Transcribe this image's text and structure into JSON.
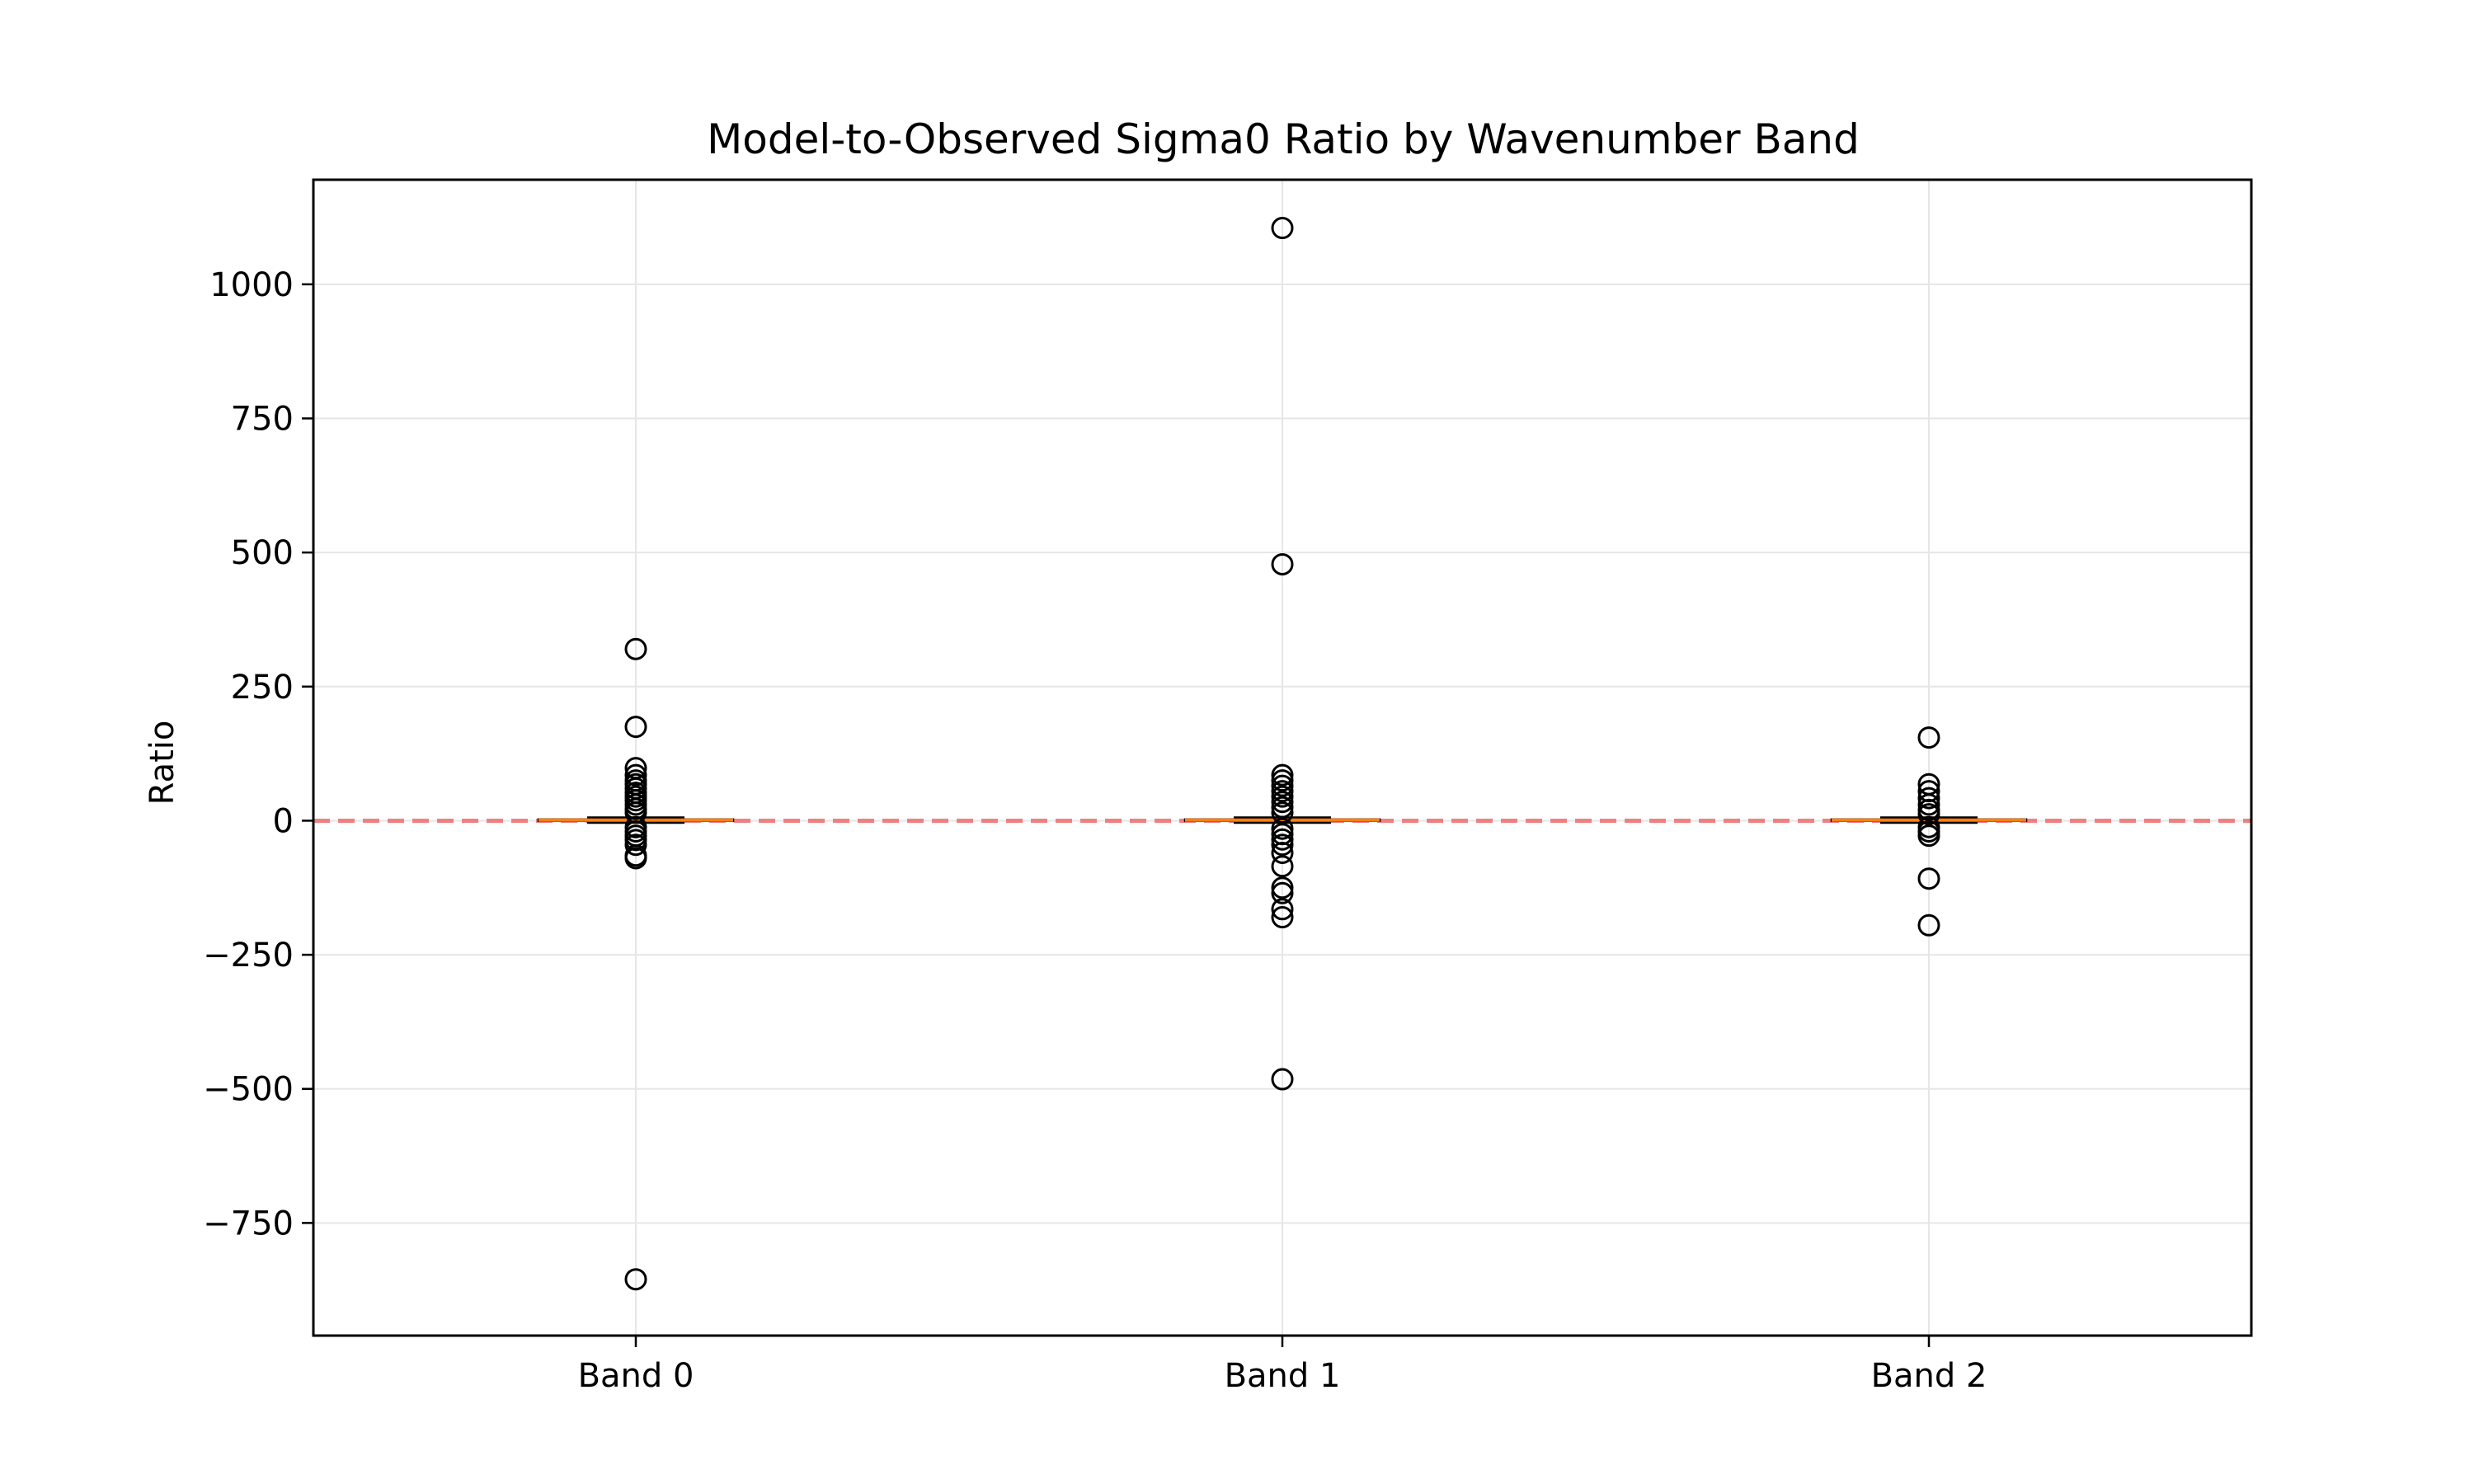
{
  "chart_data": {
    "type": "box",
    "title": "Model-to-Observed Sigma0 Ratio by Wavenumber Band",
    "xlabel": "",
    "ylabel": "Ratio",
    "categories": [
      "Band 0",
      "Band 1",
      "Band 2"
    ],
    "ylim": [
      -960,
      1195
    ],
    "yticks": [
      -750,
      -500,
      -250,
      0,
      250,
      500,
      750,
      1000
    ],
    "ytick_labels": [
      "−750",
      "−500",
      "−250",
      "0",
      "250",
      "500",
      "750",
      "1000"
    ],
    "grid": true,
    "reference_line": {
      "y": 0,
      "style": "dashed",
      "color": "#f08080"
    },
    "colors": {
      "median": "#ff7f0e",
      "box": "#000000",
      "outlier": "#000000",
      "grid": "#e6e6e6"
    },
    "boxes": [
      {
        "category": "Band 0",
        "q1": -0.5,
        "median": 1.0,
        "q3": 2.5,
        "whisker_low": -4,
        "whisker_high": 6,
        "outliers": [
          320,
          175,
          98,
          85,
          75,
          68,
          60,
          52,
          45,
          38,
          30,
          22,
          15,
          -12,
          -20,
          -28,
          -36,
          -45,
          -65,
          -70,
          -855
        ]
      },
      {
        "category": "Band 1",
        "q1": -0.5,
        "median": 1.0,
        "q3": 2.5,
        "whisker_low": -4,
        "whisker_high": 6,
        "outliers": [
          1105,
          478,
          85,
          75,
          65,
          55,
          45,
          35,
          25,
          15,
          -15,
          -25,
          -35,
          -45,
          -60,
          -85,
          -125,
          -135,
          -165,
          -180,
          -482
        ]
      },
      {
        "category": "Band 2",
        "q1": -0.5,
        "median": 1.0,
        "q3": 2.5,
        "whisker_low": -4,
        "whisker_high": 6,
        "outliers": [
          155,
          68,
          55,
          42,
          30,
          20,
          12,
          -12,
          -20,
          -28,
          -108,
          -195
        ]
      }
    ]
  }
}
